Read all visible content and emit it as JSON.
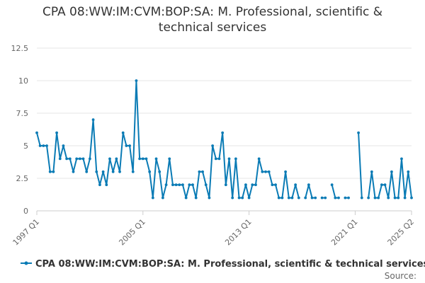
{
  "chart_data": {
    "type": "line",
    "title_line1": "CPA 08:WW:IM:CVM:BOP:SA: M. Professional, scientific &",
    "title_line2": "technical services",
    "xlabel": "",
    "ylabel": "",
    "ylim": [
      0,
      12.5
    ],
    "yticks": [
      0,
      2.5,
      5,
      7.5,
      10,
      12.5
    ],
    "ytick_labels": [
      "0",
      "2.5",
      "5",
      "7.5",
      "10",
      "12.5"
    ],
    "xtick_labels": [
      "1997 Q1",
      "2005 Q1",
      "2013 Q1",
      "2021 Q1",
      "2025 Q2"
    ],
    "xtick_indices": [
      0,
      32,
      64,
      96,
      113
    ],
    "grid": true,
    "legend_position": "bottom",
    "color": "#0a7bb5",
    "source_label": "Source:",
    "series": [
      {
        "name": "CPA 08:WW:IM:CVM:BOP:SA: M. Professional, scientific & technical services",
        "start": "1997 Q1",
        "values": [
          6,
          5,
          5,
          5,
          3,
          3,
          6,
          4,
          5,
          4,
          4,
          3,
          4,
          4,
          4,
          3,
          4,
          7,
          3,
          2,
          3,
          2,
          4,
          3,
          4,
          3,
          6,
          5,
          5,
          3,
          10,
          4,
          4,
          4,
          3,
          1,
          4,
          3,
          1,
          2,
          4,
          2,
          2,
          2,
          2,
          1,
          2,
          2,
          1,
          3,
          3,
          2,
          1,
          5,
          4,
          4,
          6,
          2,
          4,
          1,
          4,
          1,
          1,
          2,
          1,
          2,
          2,
          4,
          3,
          3,
          3,
          2,
          2,
          1,
          1,
          3,
          1,
          1,
          2,
          1,
          null,
          1,
          2,
          1,
          1,
          null,
          1,
          1,
          null,
          2,
          1,
          1,
          null,
          1,
          1,
          null,
          null,
          6,
          1,
          null,
          1,
          3,
          1,
          1,
          2,
          2,
          1,
          3,
          1,
          1,
          4,
          1,
          3,
          1
        ]
      }
    ]
  }
}
